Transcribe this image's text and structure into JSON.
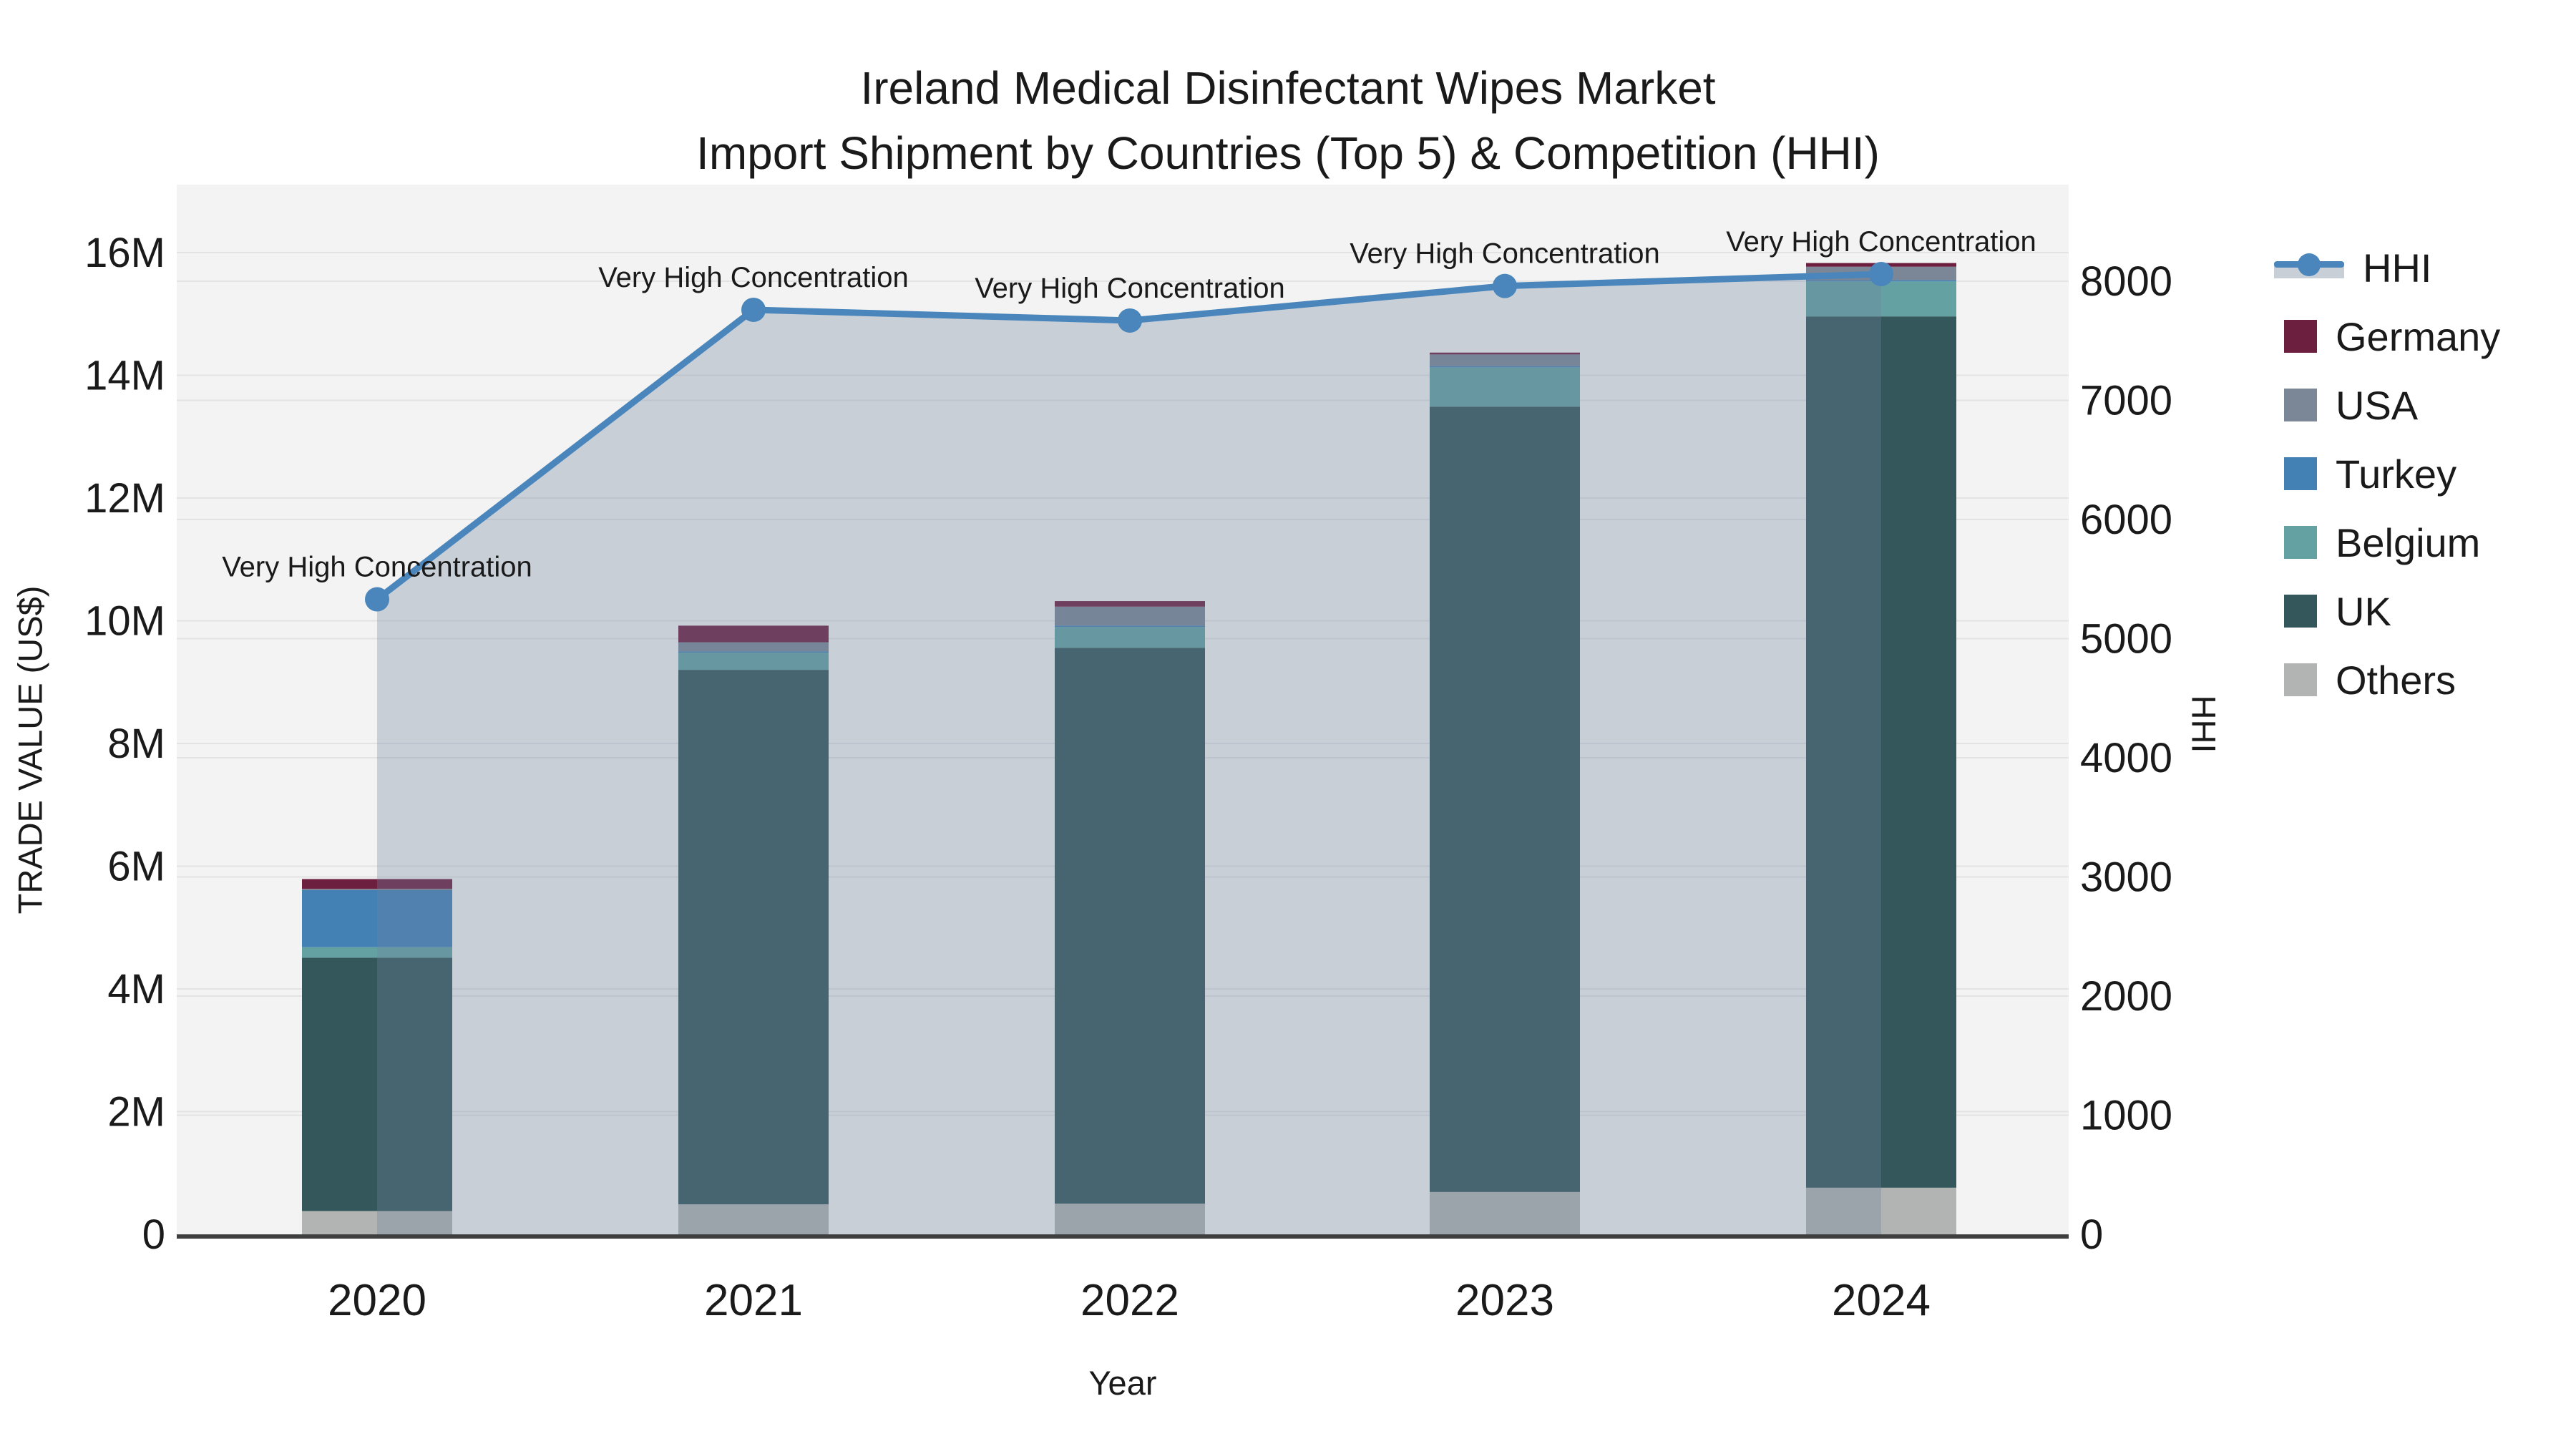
{
  "title": {
    "line1": "Ireland Medical Disinfectant Wipes Market",
    "line2": "Import Shipment by Countries (Top 5) & Competition (HHI)"
  },
  "axes": {
    "x_title": "Year",
    "y_left_title": "TRADE VALUE (US$)",
    "y_right_title": "HHI",
    "y_left_ticks": [
      "0",
      "2M",
      "4M",
      "6M",
      "8M",
      "10M",
      "12M",
      "14M",
      "16M"
    ],
    "y_right_ticks": [
      "0",
      "1000",
      "2000",
      "3000",
      "4000",
      "5000",
      "6000",
      "7000",
      "8000"
    ],
    "x_ticks": [
      "2020",
      "2021",
      "2022",
      "2023",
      "2024"
    ]
  },
  "chart_data": {
    "type": "bar+line",
    "title": "Ireland Medical Disinfectant Wipes Market — Import Shipment by Countries (Top 5) & Competition (HHI)",
    "categories": [
      "2020",
      "2021",
      "2022",
      "2023",
      "2024"
    ],
    "stack_order_note": "bar series stacked bottom-to-top in listed order; values in million US$",
    "series": [
      {
        "name": "Others",
        "type": "bar",
        "color": "#b1b4b2",
        "values_musd": [
          0.38,
          0.49,
          0.5,
          0.69,
          0.76
        ]
      },
      {
        "name": "UK",
        "type": "bar",
        "color": "#33575a",
        "values_musd": [
          4.13,
          8.71,
          9.06,
          12.8,
          14.2
        ]
      },
      {
        "name": "Belgium",
        "type": "bar",
        "color": "#63a1a2",
        "values_musd": [
          0.17,
          0.28,
          0.34,
          0.64,
          0.57
        ]
      },
      {
        "name": "Turkey",
        "type": "bar",
        "color": "#4381b5",
        "values_musd": [
          0.93,
          0.02,
          0.02,
          0.02,
          0.02
        ]
      },
      {
        "name": "USA",
        "type": "bar",
        "color": "#7b8696",
        "values_musd": [
          0.02,
          0.15,
          0.31,
          0.19,
          0.22
        ]
      },
      {
        "name": "Germany",
        "type": "bar",
        "color": "#6d1f40",
        "values_musd": [
          0.16,
          0.27,
          0.09,
          0.03,
          0.06
        ]
      }
    ],
    "line": {
      "name": "HHI",
      "color": "#4a86bb",
      "area_fill": "rgba(112,132,158,0.32)",
      "values": [
        5330,
        7760,
        7670,
        7960,
        8060
      ]
    },
    "annotations": [
      {
        "x": "2020",
        "text": "Very High Concentration"
      },
      {
        "x": "2021",
        "text": "Very High Concentration"
      },
      {
        "x": "2022",
        "text": "Very High Concentration"
      },
      {
        "x": "2023",
        "text": "Very High Concentration"
      },
      {
        "x": "2024",
        "text": "Very High Concentration"
      }
    ],
    "xlabel": "Year",
    "ylabel": "TRADE VALUE (US$)",
    "ylabel2": "HHI",
    "ylim_left_musd": [
      0,
      16
    ],
    "ylim_right": [
      0,
      8000
    ],
    "grid": true,
    "legend_position": "right"
  },
  "legend": {
    "items": [
      {
        "label": "HHI",
        "kind": "line",
        "color": "#4a86bb"
      },
      {
        "label": "Germany",
        "kind": "bar",
        "color": "#6d1f40"
      },
      {
        "label": "USA",
        "kind": "bar",
        "color": "#7b8696"
      },
      {
        "label": "Turkey",
        "kind": "bar",
        "color": "#4381b5"
      },
      {
        "label": "Belgium",
        "kind": "bar",
        "color": "#63a1a2"
      },
      {
        "label": "UK",
        "kind": "bar",
        "color": "#33575a"
      },
      {
        "label": "Others",
        "kind": "bar",
        "color": "#b1b4b2"
      }
    ]
  },
  "colors": {
    "plot_bg": "#f2f3f2",
    "grid": "#e3e3e3",
    "axis_line": "#3f3f3f",
    "text": "#1a1a1a",
    "area_band": "#c9cfd7"
  }
}
